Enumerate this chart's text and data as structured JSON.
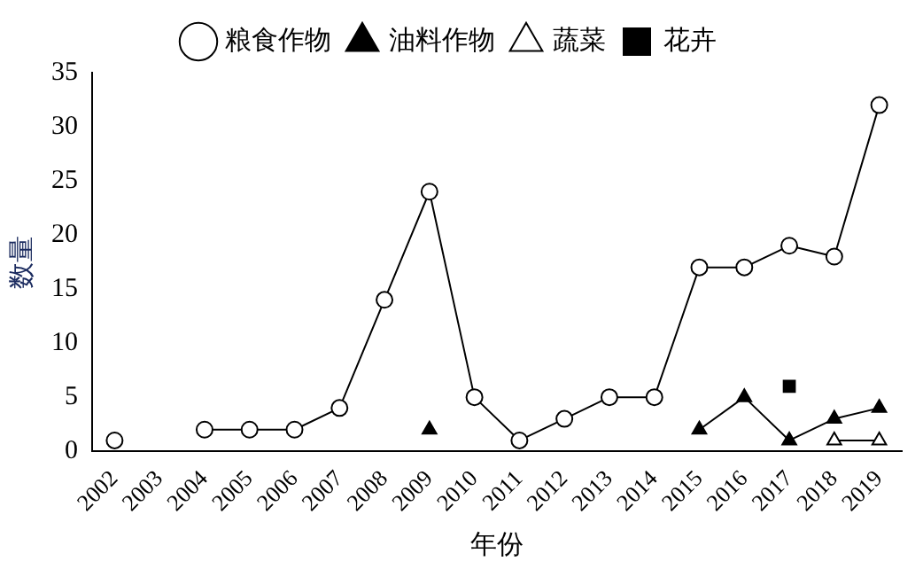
{
  "chart_data": {
    "type": "line",
    "xlabel": "年份",
    "ylabel": "数量",
    "categories": [
      "2002",
      "2003",
      "2004",
      "2005",
      "2006",
      "2007",
      "2008",
      "2009",
      "2010",
      "2011",
      "2012",
      "2013",
      "2014",
      "2015",
      "2016",
      "2017",
      "2018",
      "2019"
    ],
    "series": [
      {
        "name": "粮食作物",
        "color": "#ffffff",
        "marker": "circle",
        "values": [
          1,
          null,
          2,
          2,
          2,
          4,
          14,
          24,
          5,
          1,
          3,
          5,
          5,
          17,
          17,
          19,
          18,
          32
        ]
      },
      {
        "name": "油料作物",
        "color": "#000000",
        "marker": "triangle",
        "values": [
          null,
          null,
          null,
          null,
          null,
          null,
          null,
          2,
          null,
          null,
          null,
          null,
          null,
          2,
          5,
          1,
          3,
          4
        ]
      },
      {
        "name": "蔬菜",
        "color": "#ffffff",
        "marker": "triangle",
        "values": [
          null,
          null,
          null,
          null,
          null,
          null,
          null,
          null,
          null,
          null,
          null,
          null,
          null,
          null,
          null,
          null,
          1,
          1
        ]
      },
      {
        "name": "花卉",
        "color": "#000000",
        "marker": "square",
        "values": [
          null,
          null,
          null,
          null,
          null,
          null,
          null,
          null,
          null,
          null,
          null,
          null,
          null,
          null,
          null,
          6,
          null,
          null
        ]
      }
    ],
    "ylim": [
      0,
      35
    ],
    "yticks": [
      0,
      5,
      10,
      15,
      20,
      25,
      30,
      35
    ],
    "grid": false,
    "legend": "top",
    "line_style": "solid"
  }
}
